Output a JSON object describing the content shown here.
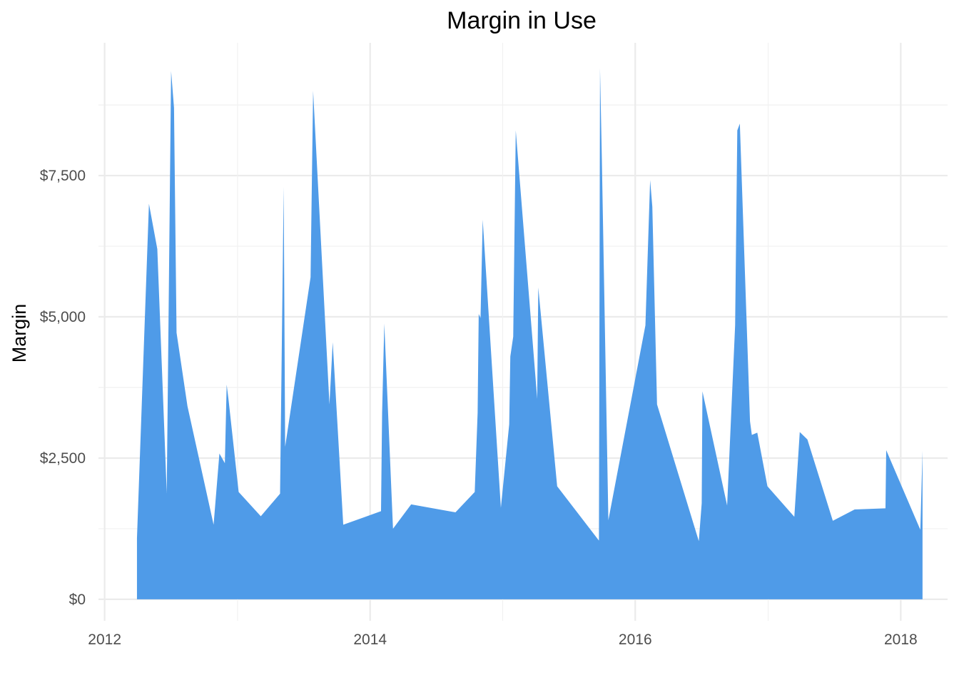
{
  "chart_data": {
    "type": "area",
    "title": "Margin in Use",
    "xlabel": "",
    "ylabel": "Margin",
    "x_ticks": [
      "2012",
      "2014",
      "2016",
      "2018"
    ],
    "y_ticks": [
      "$0",
      "$2,500",
      "$5,000",
      "$7,500"
    ],
    "xlim": [
      "2011-12-15",
      "2018-05-10"
    ],
    "ylim": [
      -380,
      9850
    ],
    "grid": true,
    "legend": "none",
    "fill_color": "#4f9be8",
    "series": [
      {
        "x": [
          "2012-03-30",
          "2012-05-02",
          "2012-05-25",
          "2012-06-20",
          "2012-07-02",
          "2012-07-10",
          "2012-07-17",
          "2012-08-16",
          "2012-10-27",
          "2012-11-12",
          "2012-11-27",
          "2012-12-02",
          "2012-12-07",
          "2013-01-04",
          "2013-03-06",
          "2013-04-28",
          "2013-05-08",
          "2013-05-12",
          "2013-05-19",
          "2013-07-21",
          "2013-07-28",
          "2013-09-11",
          "2013-09-20",
          "2013-10-19",
          "2014-01-31",
          "2014-02-03",
          "2014-02-09",
          "2014-03-05",
          "2014-04-24",
          "2014-08-24",
          "2014-10-16",
          "2014-10-24",
          "2014-10-27",
          "2014-11-01",
          "2014-11-07",
          "2014-12-27",
          "2015-01-19",
          "2015-01-22",
          "2015-01-30",
          "2015-02-06",
          "2015-04-06",
          "2015-04-09",
          "2015-05-31",
          "2015-09-23",
          "2015-09-26",
          "2015-10-01",
          "2015-10-19",
          "2016-01-29",
          "2016-02-11",
          "2016-02-17",
          "2016-03-01",
          "2016-06-24",
          "2016-07-02",
          "2016-07-04",
          "2016-09-10",
          "2016-10-02",
          "2016-10-08",
          "2016-10-15",
          "2016-11-12",
          "2016-11-17",
          "2016-12-02",
          "2016-12-30",
          "2017-03-14",
          "2017-03-29",
          "2017-04-19",
          "2017-06-28",
          "2017-08-27",
          "2017-11-20",
          "2017-11-22",
          "2018-02-24",
          "2018-03-02"
        ],
        "values": [
          1080,
          7000,
          6200,
          1880,
          9350,
          8700,
          4720,
          3420,
          1320,
          2580,
          2410,
          3800,
          3540,
          1900,
          1470,
          1870,
          7300,
          2700,
          3000,
          5700,
          9000,
          3450,
          4550,
          1320,
          1560,
          3300,
          4880,
          1250,
          1680,
          1540,
          1900,
          3300,
          5050,
          4980,
          6720,
          1620,
          3100,
          4300,
          4650,
          8300,
          3550,
          5520,
          2000,
          1040,
          9400,
          7800,
          1400,
          4850,
          7420,
          6950,
          3450,
          1030,
          1700,
          3680,
          1660,
          4850,
          8300,
          8420,
          3150,
          2910,
          2950,
          2000,
          1460,
          2960,
          2830,
          1390,
          1590,
          1610,
          2640,
          1230,
          2630
        ]
      }
    ]
  }
}
